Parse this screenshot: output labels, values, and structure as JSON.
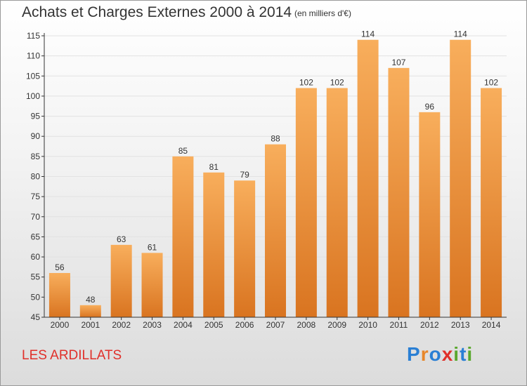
{
  "title": "Achats et Charges Externes 2000 à 2014",
  "subtitle": "(en milliers d'€)",
  "commune": "LES ARDILLATS",
  "logo": {
    "text": "Proxiti",
    "letters": [
      "P",
      "r",
      "o",
      "x",
      "i",
      "t",
      "i"
    ],
    "colors": [
      "#2a7fd4",
      "#e8862a",
      "#2a7fd4",
      "#e0302a",
      "#5aa82e",
      "#2a7fd4",
      "#5aa82e"
    ]
  },
  "colors": {
    "bar_light": "#f8ae5c",
    "bar_dark": "#d97420",
    "grid": "#e2e2e2",
    "axis": "#333333",
    "commune": "#e0302a"
  },
  "chart_data": {
    "type": "bar",
    "categories": [
      "2000",
      "2001",
      "2002",
      "2003",
      "2004",
      "2005",
      "2006",
      "2007",
      "2008",
      "2009",
      "2010",
      "2011",
      "2012",
      "2013",
      "2014"
    ],
    "values": [
      56,
      48,
      63,
      61,
      85,
      81,
      79,
      88,
      102,
      102,
      114,
      107,
      96,
      114,
      102
    ],
    "title": "Achats et Charges Externes 2000 à 2014",
    "subtitle": "(en milliers d'€)",
    "ylim": [
      45,
      115
    ],
    "yticks": [
      45,
      50,
      55,
      60,
      65,
      70,
      75,
      80,
      85,
      90,
      95,
      100,
      105,
      110,
      115
    ],
    "grid": true,
    "data_labels": true,
    "legend": "none"
  }
}
